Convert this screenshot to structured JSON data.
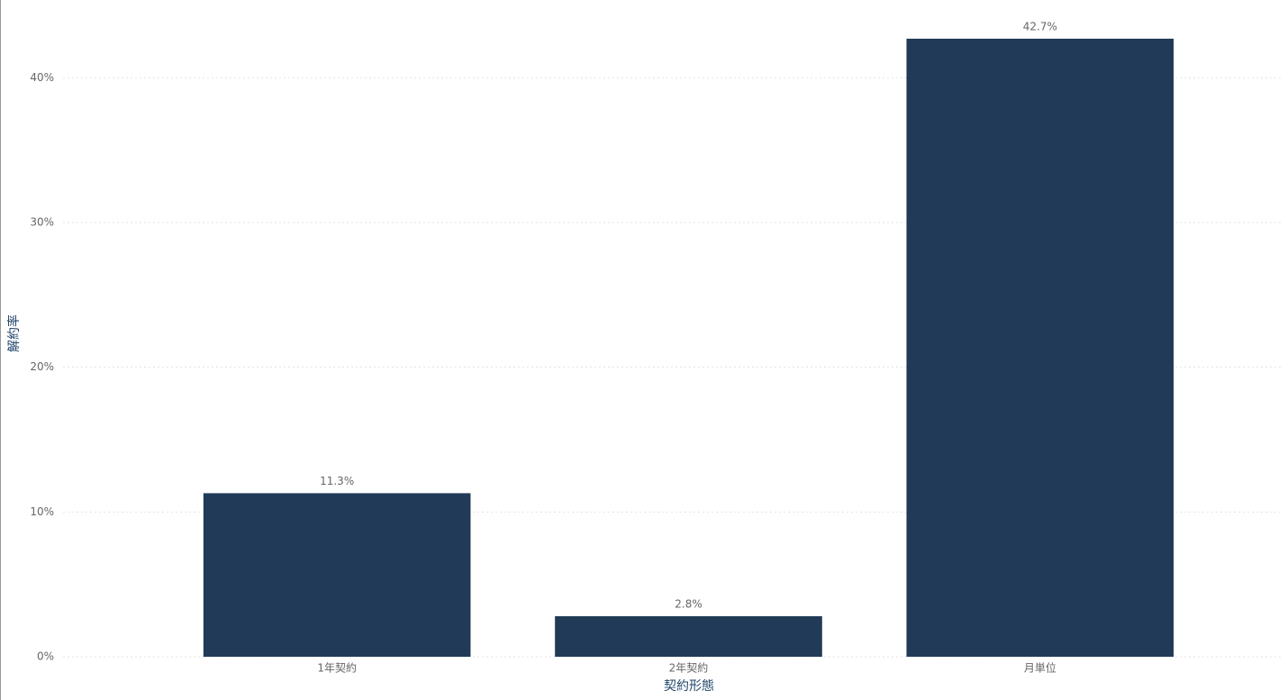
{
  "chart_data": {
    "type": "bar",
    "x_label": "契約形態",
    "y_label": "解約率",
    "categories": [
      "1年契約",
      "2年契約",
      "月単位"
    ],
    "values": [
      11.3,
      2.8,
      42.7
    ],
    "value_labels": [
      "11.3%",
      "2.8%",
      "42.7%"
    ],
    "color": "#213a57",
    "ylim": [
      0,
      45
    ],
    "yticks": [
      {
        "value": 0,
        "label": "0%"
      },
      {
        "value": 10,
        "label": "10%"
      },
      {
        "value": 20,
        "label": "20%"
      },
      {
        "value": 30,
        "label": "30%"
      },
      {
        "value": 40,
        "label": "40%"
      }
    ],
    "grid": true
  }
}
